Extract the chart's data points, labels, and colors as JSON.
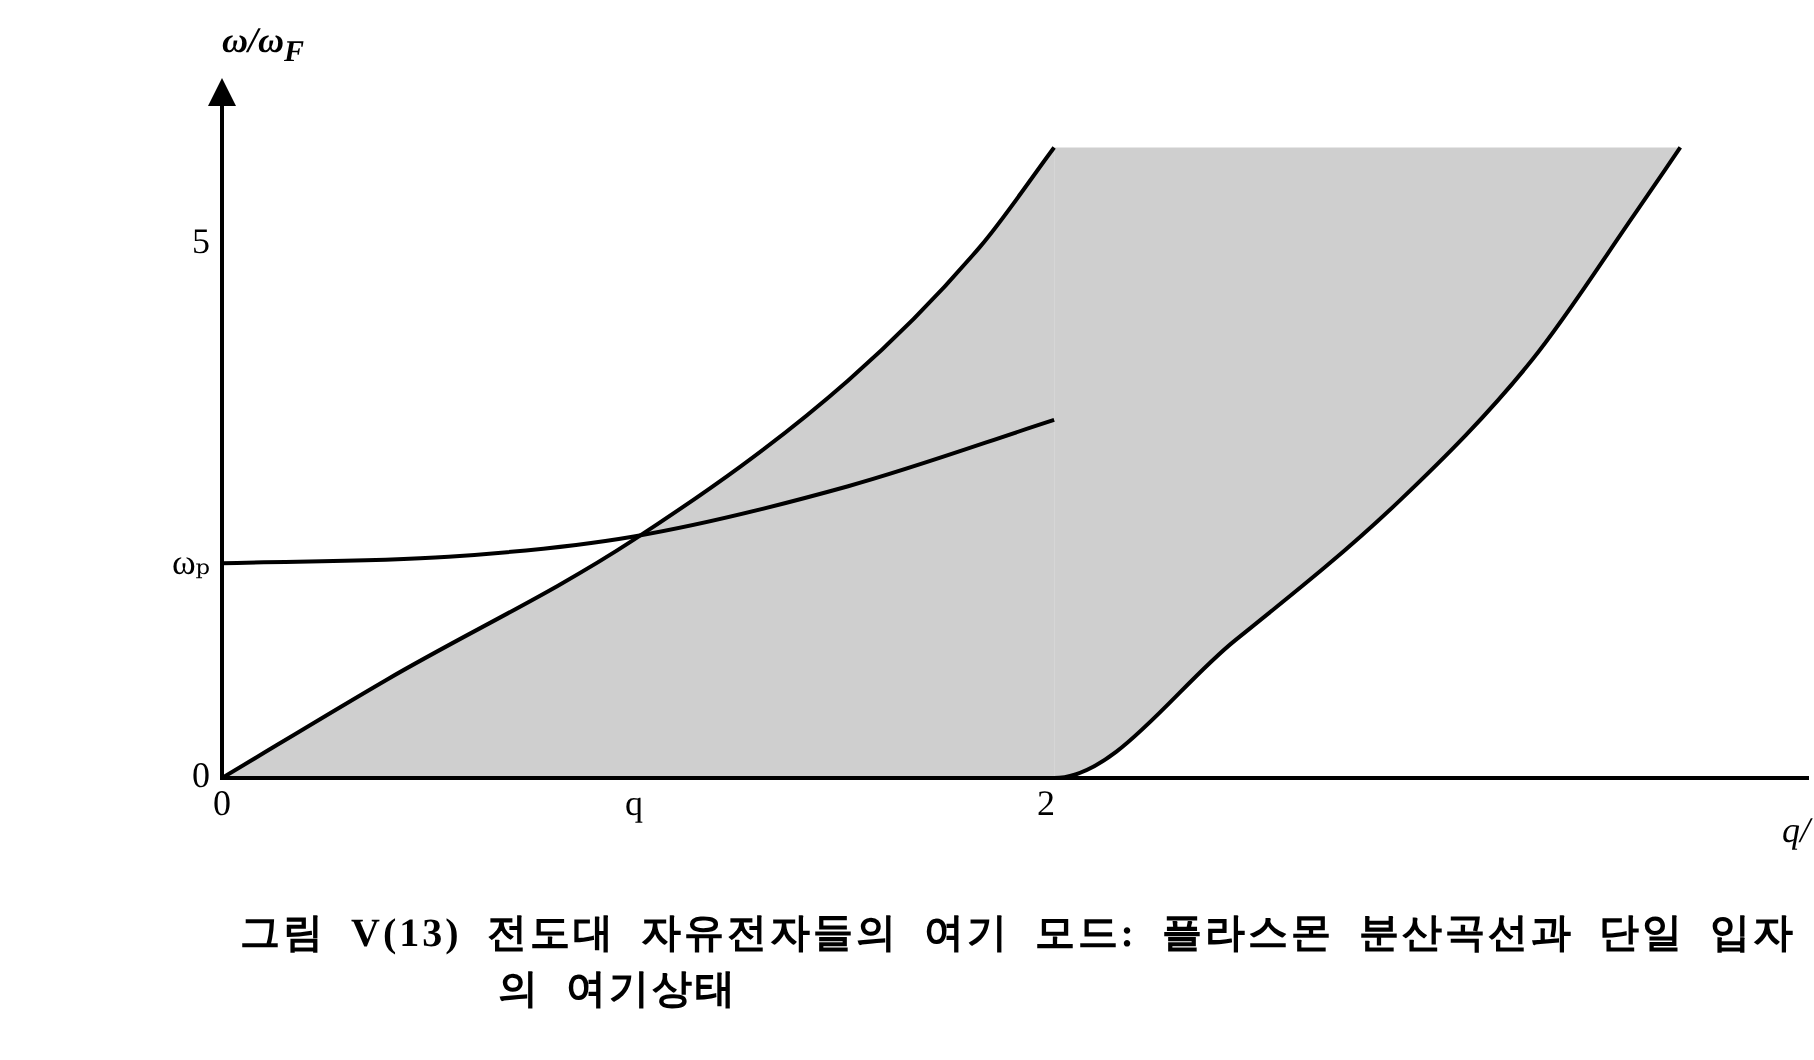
{
  "chart_data": {
    "type": "line",
    "ylabel": "ω/ω$_{F}$",
    "xlabel": "q/",
    "annotations": [
      "그림 V(13) 전도대 자유전자들의 여기 모드: 플라스몬 분산곡선과 단일 입자의 여기상태"
    ],
    "xlim": [
      0,
      3.85
    ],
    "ylim": [
      0,
      6.4
    ],
    "xticks": [
      0,
      {
        "value": 1,
        "label": "q"
      },
      2
    ],
    "yticks": [
      0,
      {
        "value": 2,
        "label": "ωₚ"
      },
      5
    ],
    "series": [
      {
        "type": "area",
        "color": "#000000",
        "x": [
          0,
          0.4,
          1,
          1.52,
          1.84,
          2.02
        ],
        "values": [
          0,
          0.92,
          2.23,
          3.72,
          4.97,
          5.9
        ]
      },
      {
        "type": "line",
        "color": "#000000",
        "x": [
          0,
          2.02,
          2.46,
          2.86,
          3.18,
          3.43,
          3.54
        ],
        "values": [
          0,
          0,
          1.29,
          2.6,
          3.91,
          5.28,
          5.9
        ]
      },
      {
        "type": "line",
        "color": "#000000",
        "x": [
          0,
          0.55,
          1,
          1.52,
          2.02
        ],
        "values": [
          2.01,
          2.07,
          2.26,
          2.73,
          3.35
        ]
      }
    ]
  }
}
